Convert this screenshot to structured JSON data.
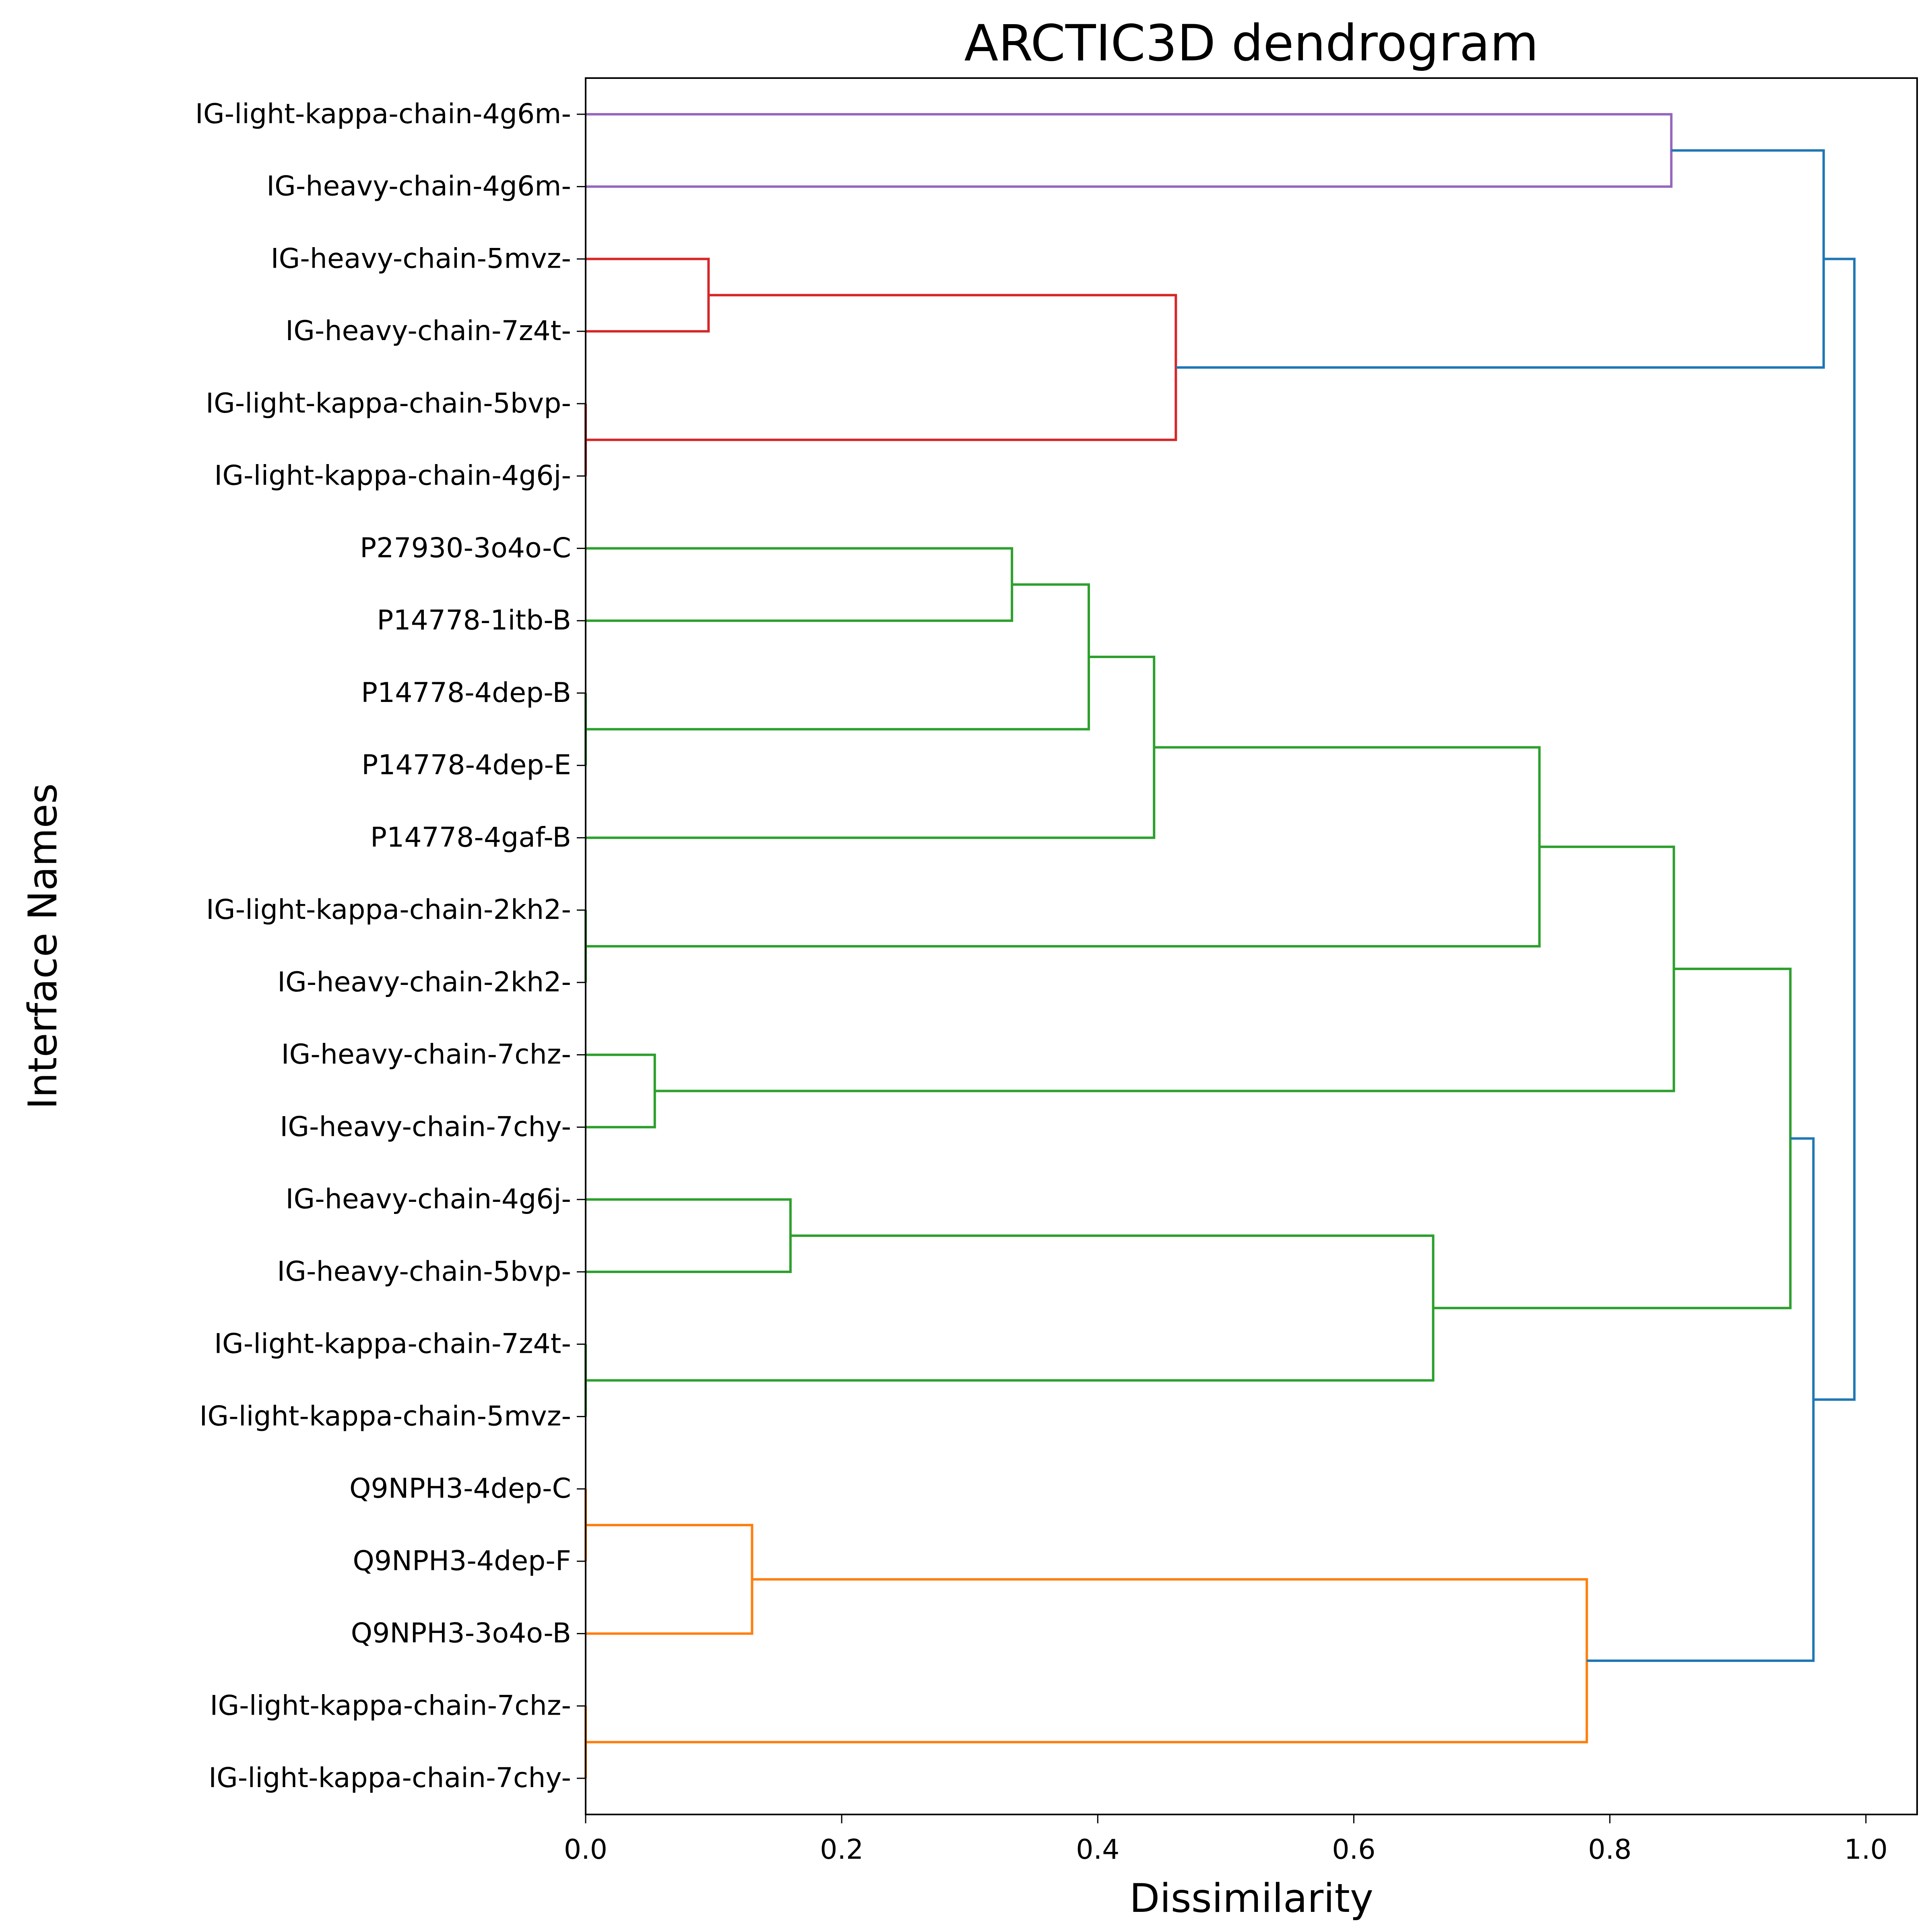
{
  "chart_data": {
    "type": "dendrogram",
    "title": "ARCTIC3D dendrogram",
    "xlabel": "Dissimilarity",
    "ylabel": "Interface Names",
    "xlim": [
      0,
      1.04
    ],
    "xticks": [
      0.0,
      0.2,
      0.4,
      0.6,
      0.8,
      1.0
    ],
    "xtick_labels": [
      "0.0",
      "0.2",
      "0.4",
      "0.6",
      "0.8",
      "1.0"
    ],
    "orientation": "left",
    "grid": false,
    "leaves": [
      "IG-light-kappa-chain-4g6m-",
      "IG-heavy-chain-4g6m-",
      "IG-heavy-chain-5mvz-",
      "IG-heavy-chain-7z4t-",
      "IG-light-kappa-chain-5bvp-",
      "IG-light-kappa-chain-4g6j-",
      "P27930-3o4o-C",
      "P14778-1itb-B",
      "P14778-4dep-B",
      "P14778-4dep-E",
      "P14778-4gaf-B",
      "IG-light-kappa-chain-2kh2-",
      "IG-heavy-chain-2kh2-",
      "IG-heavy-chain-7chz-",
      "IG-heavy-chain-7chy-",
      "IG-heavy-chain-4g6j-",
      "IG-heavy-chain-5bvp-",
      "IG-light-kappa-chain-7z4t-",
      "IG-light-kappa-chain-5mvz-",
      "Q9NPH3-4dep-C",
      "Q9NPH3-4dep-F",
      "Q9NPH3-3o4o-B",
      "IG-light-kappa-chain-7chz-",
      "IG-light-kappa-chain-7chy-"
    ],
    "colors": {
      "purple": "#9467bd",
      "red": "#d62728",
      "green": "#2ca02c",
      "orange": "#ff7f0e",
      "blue": "#1f77b4"
    },
    "merges": [
      {
        "a": 0,
        "b": 1,
        "height": 0.848,
        "color": "purple"
      },
      {
        "a": 2,
        "b": 3,
        "height": 0.096,
        "color": "red"
      },
      {
        "a": 4,
        "b": 5,
        "height": 0.0,
        "color": "red"
      },
      {
        "a": 25,
        "b": 26,
        "height": 0.461,
        "color": "red"
      },
      {
        "a": 24,
        "b": 27,
        "height": 0.967,
        "color": "blue"
      },
      {
        "a": 6,
        "b": 7,
        "height": 0.333,
        "color": "green"
      },
      {
        "a": 8,
        "b": 9,
        "height": 0.0,
        "color": "green"
      },
      {
        "a": 29,
        "b": 30,
        "height": 0.393,
        "color": "green"
      },
      {
        "a": 31,
        "b": 10,
        "height": 0.444,
        "color": "green"
      },
      {
        "a": 11,
        "b": 12,
        "height": 0.0,
        "color": "green"
      },
      {
        "a": 32,
        "b": 33,
        "height": 0.745,
        "color": "green"
      },
      {
        "a": 13,
        "b": 14,
        "height": 0.054,
        "color": "green"
      },
      {
        "a": 34,
        "b": 35,
        "height": 0.85,
        "color": "green"
      },
      {
        "a": 15,
        "b": 16,
        "height": 0.16,
        "color": "green"
      },
      {
        "a": 17,
        "b": 18,
        "height": 0.0,
        "color": "green"
      },
      {
        "a": 37,
        "b": 38,
        "height": 0.662,
        "color": "green"
      },
      {
        "a": 36,
        "b": 39,
        "height": 0.941,
        "color": "green"
      },
      {
        "a": 19,
        "b": 20,
        "height": 0.0,
        "color": "orange"
      },
      {
        "a": 41,
        "b": 21,
        "height": 0.13,
        "color": "orange"
      },
      {
        "a": 22,
        "b": 23,
        "height": 0.0,
        "color": "orange"
      },
      {
        "a": 42,
        "b": 43,
        "height": 0.782,
        "color": "orange"
      },
      {
        "a": 40,
        "b": 44,
        "height": 0.959,
        "color": "blue"
      },
      {
        "a": 28,
        "b": 45,
        "height": 0.991,
        "color": "blue"
      }
    ]
  }
}
